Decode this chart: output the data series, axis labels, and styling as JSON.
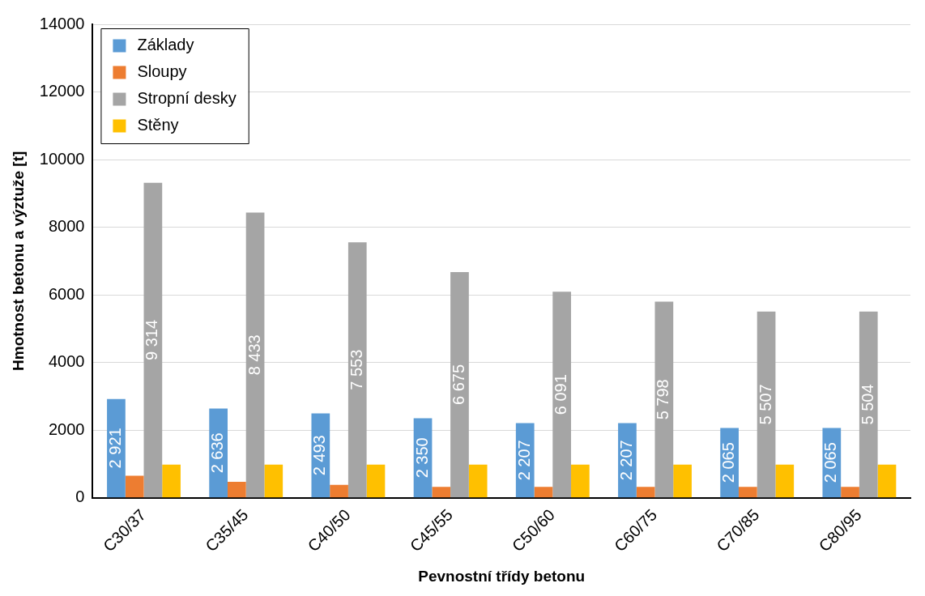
{
  "chart_data": {
    "type": "bar",
    "xlabel": "Pevnostní třídy betonu",
    "ylabel": "Hmotnost betonu a výztuže [t]",
    "categories": [
      "C30/37",
      "C35/45",
      "C40/50",
      "C45/55",
      "C50/60",
      "C60/75",
      "C70/85",
      "C80/95"
    ],
    "series": [
      {
        "name": "Základy",
        "color": "#5b9bd5",
        "values": [
          2921,
          2636,
          2493,
          2350,
          2207,
          2207,
          2065,
          2065
        ],
        "value_labels": [
          "2 921",
          "2 636",
          "2 493",
          "2 350",
          "2 207",
          "2 207",
          "2 065",
          "2 065"
        ]
      },
      {
        "name": "Sloupy",
        "color": "#ed7d31",
        "values": [
          650,
          470,
          380,
          320,
          320,
          320,
          320,
          320
        ]
      },
      {
        "name": "Stropní desky",
        "color": "#a5a5a5",
        "values": [
          9314,
          8433,
          7553,
          6675,
          6091,
          5798,
          5507,
          5504
        ],
        "value_labels": [
          "9 314",
          "8 433",
          "7 553",
          "6 675",
          "6 091",
          "5 798",
          "5 507",
          "5 504"
        ]
      },
      {
        "name": "Stěny",
        "color": "#ffc000",
        "values": [
          980,
          980,
          980,
          980,
          980,
          980,
          980,
          980
        ]
      }
    ],
    "ylim": [
      0,
      14000
    ],
    "yticks": [
      0,
      2000,
      4000,
      6000,
      8000,
      10000,
      12000,
      14000
    ],
    "grid": "y",
    "legend": "top left"
  }
}
